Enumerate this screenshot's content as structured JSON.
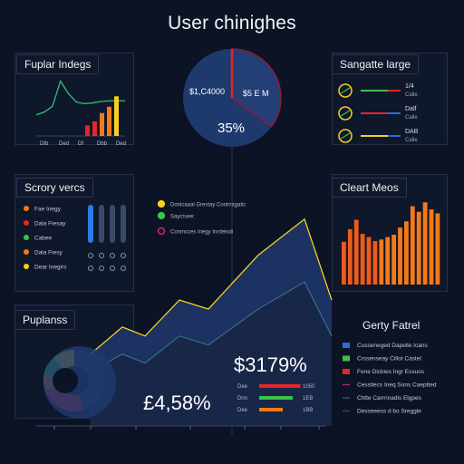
{
  "title": "User chinighes",
  "colors": {
    "bg": "#0c1324",
    "panel": "#121b30",
    "border": "#24304a",
    "yellow": "#f5d020",
    "orange": "#f47a18",
    "red": "#e8242c",
    "green": "#3cc24a",
    "blue": "#2a6fd6",
    "navy": "#1d3461",
    "teal": "#3a8a6a"
  },
  "panels": {
    "top_left": {
      "label": "Fuplar Indegs",
      "tick_labels": [
        "Dtb",
        "Ded",
        "Df",
        "Dbb",
        "Ded"
      ]
    },
    "pie": {
      "label_left": "$1,C4000",
      "label_right": "$5 E M",
      "label_center": "35%"
    },
    "top_right": {
      "label": "Sangatte large",
      "rows": [
        {
          "a": "1/4",
          "b": "Calle"
        },
        {
          "a": "Dalf",
          "b": "Calle"
        },
        {
          "a": "DAB",
          "b": "Calle"
        }
      ]
    },
    "mid_left": {
      "label": "Scrory vercs",
      "items": [
        "Fae Inegy",
        "Dala Fiesay",
        "Cabee",
        "Dala Fiesy",
        "Dear Inegirs"
      ]
    },
    "mid_legend": {
      "items": [
        "Donicaaal Grestay Conirragatic",
        "Saycruee:",
        "Conmcces Inegy Inrdeisdi"
      ]
    },
    "right_bars": {
      "label": "Cleart Meos"
    },
    "bottom_left": {
      "label": "Puplanss"
    },
    "bottom_mid": {
      "value_a": "£4,58%",
      "value_b": "$3179%",
      "bar_labels": [
        "Dee",
        "Dnn",
        "Dee"
      ],
      "bar_values": [
        "1050",
        "1EB",
        "1BB"
      ]
    },
    "bottom_right": {
      "label": "Gerty Fatrel",
      "rows": [
        "Cusseneged Dapelle Icans",
        "Crssenseay Cillot Castel",
        "Fene Dicbies Ingr Essuos",
        "Cesstlecs Ineq Sons Caeptted",
        "Chtte Carrnnadis Elgpes",
        "Desseeess d bo Sreggle"
      ]
    }
  },
  "chart_data": [
    {
      "type": "line",
      "title": "",
      "x": [
        1,
        2,
        3,
        4,
        5,
        6,
        7,
        8,
        9,
        10,
        11,
        12
      ],
      "series": [
        {
          "values": [
            30,
            34,
            42,
            78,
            60,
            48,
            46,
            47,
            49,
            50,
            50,
            50
          ]
        }
      ]
    },
    {
      "type": "bar",
      "categories": [
        "1",
        "2",
        "3",
        "4",
        "5"
      ],
      "values": [
        10,
        14,
        22,
        28,
        38
      ]
    },
    {
      "type": "pie",
      "values": [
        35,
        65
      ]
    },
    {
      "type": "bar",
      "categories": [
        "1",
        "2",
        "3",
        "4",
        "5",
        "6",
        "7",
        "8",
        "9",
        "10",
        "11",
        "12",
        "13",
        "14",
        "15",
        "16"
      ],
      "values": [
        54,
        70,
        82,
        64,
        60,
        55,
        57,
        60,
        63,
        72,
        80,
        99,
        92,
        104,
        95,
        90
      ]
    },
    {
      "type": "area",
      "x": [
        1,
        2,
        3,
        4,
        5,
        6,
        7,
        8
      ],
      "series": [
        {
          "values": [
            8,
            11,
            10,
            14,
            13,
            19,
            23,
            14
          ]
        },
        {
          "values": [
            6,
            8,
            7,
            10,
            9,
            13,
            16,
            10
          ]
        }
      ]
    },
    {
      "type": "pie",
      "values": [
        45,
        12,
        10,
        8,
        25
      ]
    },
    {
      "type": "bar",
      "categories": [
        "Dee",
        "Dnn",
        "Dee"
      ],
      "values": [
        70,
        57,
        40
      ]
    }
  ]
}
